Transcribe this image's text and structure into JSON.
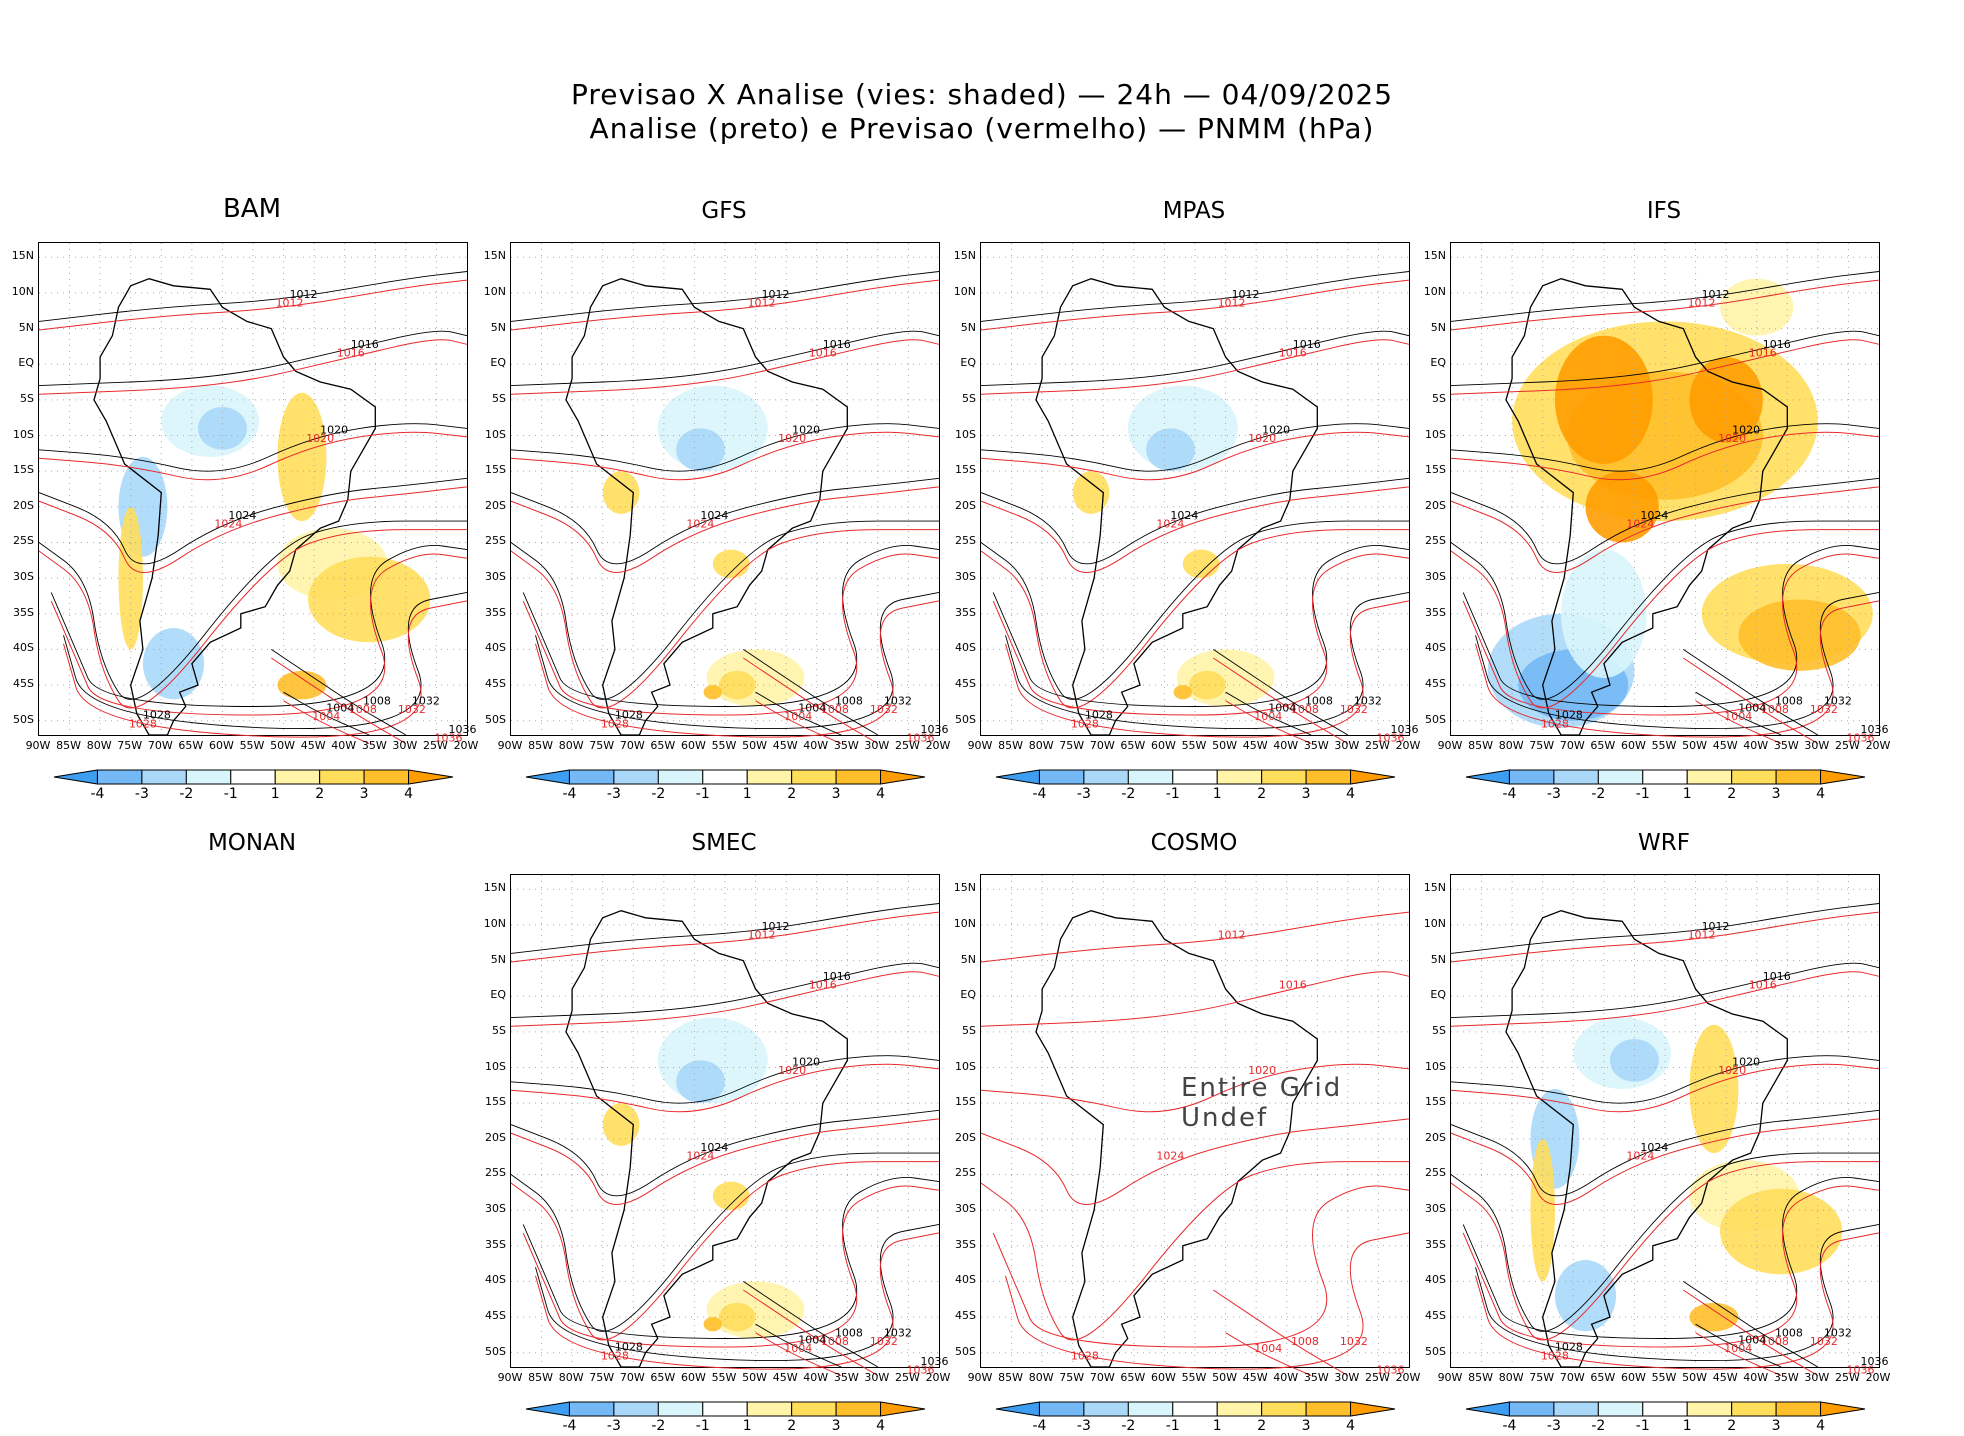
{
  "title": {
    "line1": "Previsao X Analise (vies: shaded) — 24h — 04/09/2025",
    "line2": "Analise (preto) e Previsao (vermelho) — PNMM (hPa)"
  },
  "colors": {
    "analysis": "#000000",
    "forecast": "#e8292c",
    "bias_neg4": "#3d9df0",
    "bias_neg3": "#74b9f5",
    "bias_neg2": "#a9d8f9",
    "bias_neg1": "#d8f5fb",
    "bias_pos1": "#fff4a8",
    "bias_pos2": "#ffde5c",
    "bias_pos3": "#ffbf2a",
    "bias_pos4": "#ff9d00"
  },
  "axes": {
    "y_ticks": [
      "15N",
      "10N",
      "5N",
      "EQ",
      "5S",
      "10S",
      "15S",
      "20S",
      "25S",
      "30S",
      "35S",
      "40S",
      "45S",
      "50S"
    ],
    "x_ticks": [
      "90W",
      "85W",
      "80W",
      "75W",
      "70W",
      "65W",
      "60W",
      "55W",
      "50W",
      "45W",
      "40W",
      "35W",
      "30W",
      "25W",
      "20W"
    ]
  },
  "colorbar": {
    "labels": [
      "-4",
      "-3",
      "-2",
      "-1",
      "1",
      "2",
      "3",
      "4"
    ]
  },
  "chart_data": {
    "type": "heatmap",
    "variable": "PNMM (hPa)",
    "lead_time": "24h",
    "date": "04/09/2025",
    "xlim": [
      -90,
      -20
    ],
    "ylim": [
      -52,
      17
    ],
    "bias_levels": [
      -4,
      -3,
      -2,
      -1,
      1,
      2,
      3,
      4
    ],
    "panels": [
      {
        "name": "BAM",
        "has_data": true,
        "bias": "mixed",
        "labels": [
          "1012",
          "1016",
          "1020",
          "1024",
          "1028",
          "1032",
          "1036",
          "1008",
          "1004"
        ]
      },
      {
        "name": "GFS",
        "has_data": true,
        "bias": "weak",
        "labels": [
          "1012",
          "1016",
          "1020",
          "1024",
          "1028",
          "1032",
          "1036",
          "1008",
          "1004"
        ]
      },
      {
        "name": "MPAS",
        "has_data": true,
        "bias": "weak",
        "labels": [
          "1012",
          "1016",
          "1020",
          "1024",
          "1028",
          "1032",
          "1036",
          "1008",
          "1004"
        ]
      },
      {
        "name": "IFS",
        "has_data": true,
        "bias": "strong",
        "labels": [
          "1012",
          "1016",
          "1020",
          "1024",
          "1028",
          "1032",
          "1036",
          "1008",
          "1004"
        ]
      },
      {
        "name": "MONAN",
        "has_data": false,
        "bias": "none",
        "labels": []
      },
      {
        "name": "SMEC",
        "has_data": true,
        "bias": "weak",
        "labels": [
          "1012",
          "1016",
          "1020",
          "1024",
          "1028",
          "1032",
          "1036",
          "1008",
          "1004"
        ]
      },
      {
        "name": "COSMO",
        "has_data": true,
        "bias": "undef",
        "undef_text": "Entire Grid Undef",
        "labels": [
          "1012",
          "1016",
          "1020",
          "1024",
          "1028",
          "1032",
          "1036",
          "1008",
          "1004"
        ]
      },
      {
        "name": "WRF",
        "has_data": true,
        "bias": "mixed",
        "labels": [
          "1012",
          "1016",
          "1020",
          "1024",
          "1028",
          "1032",
          "1036",
          "1008",
          "1004"
        ]
      }
    ]
  }
}
